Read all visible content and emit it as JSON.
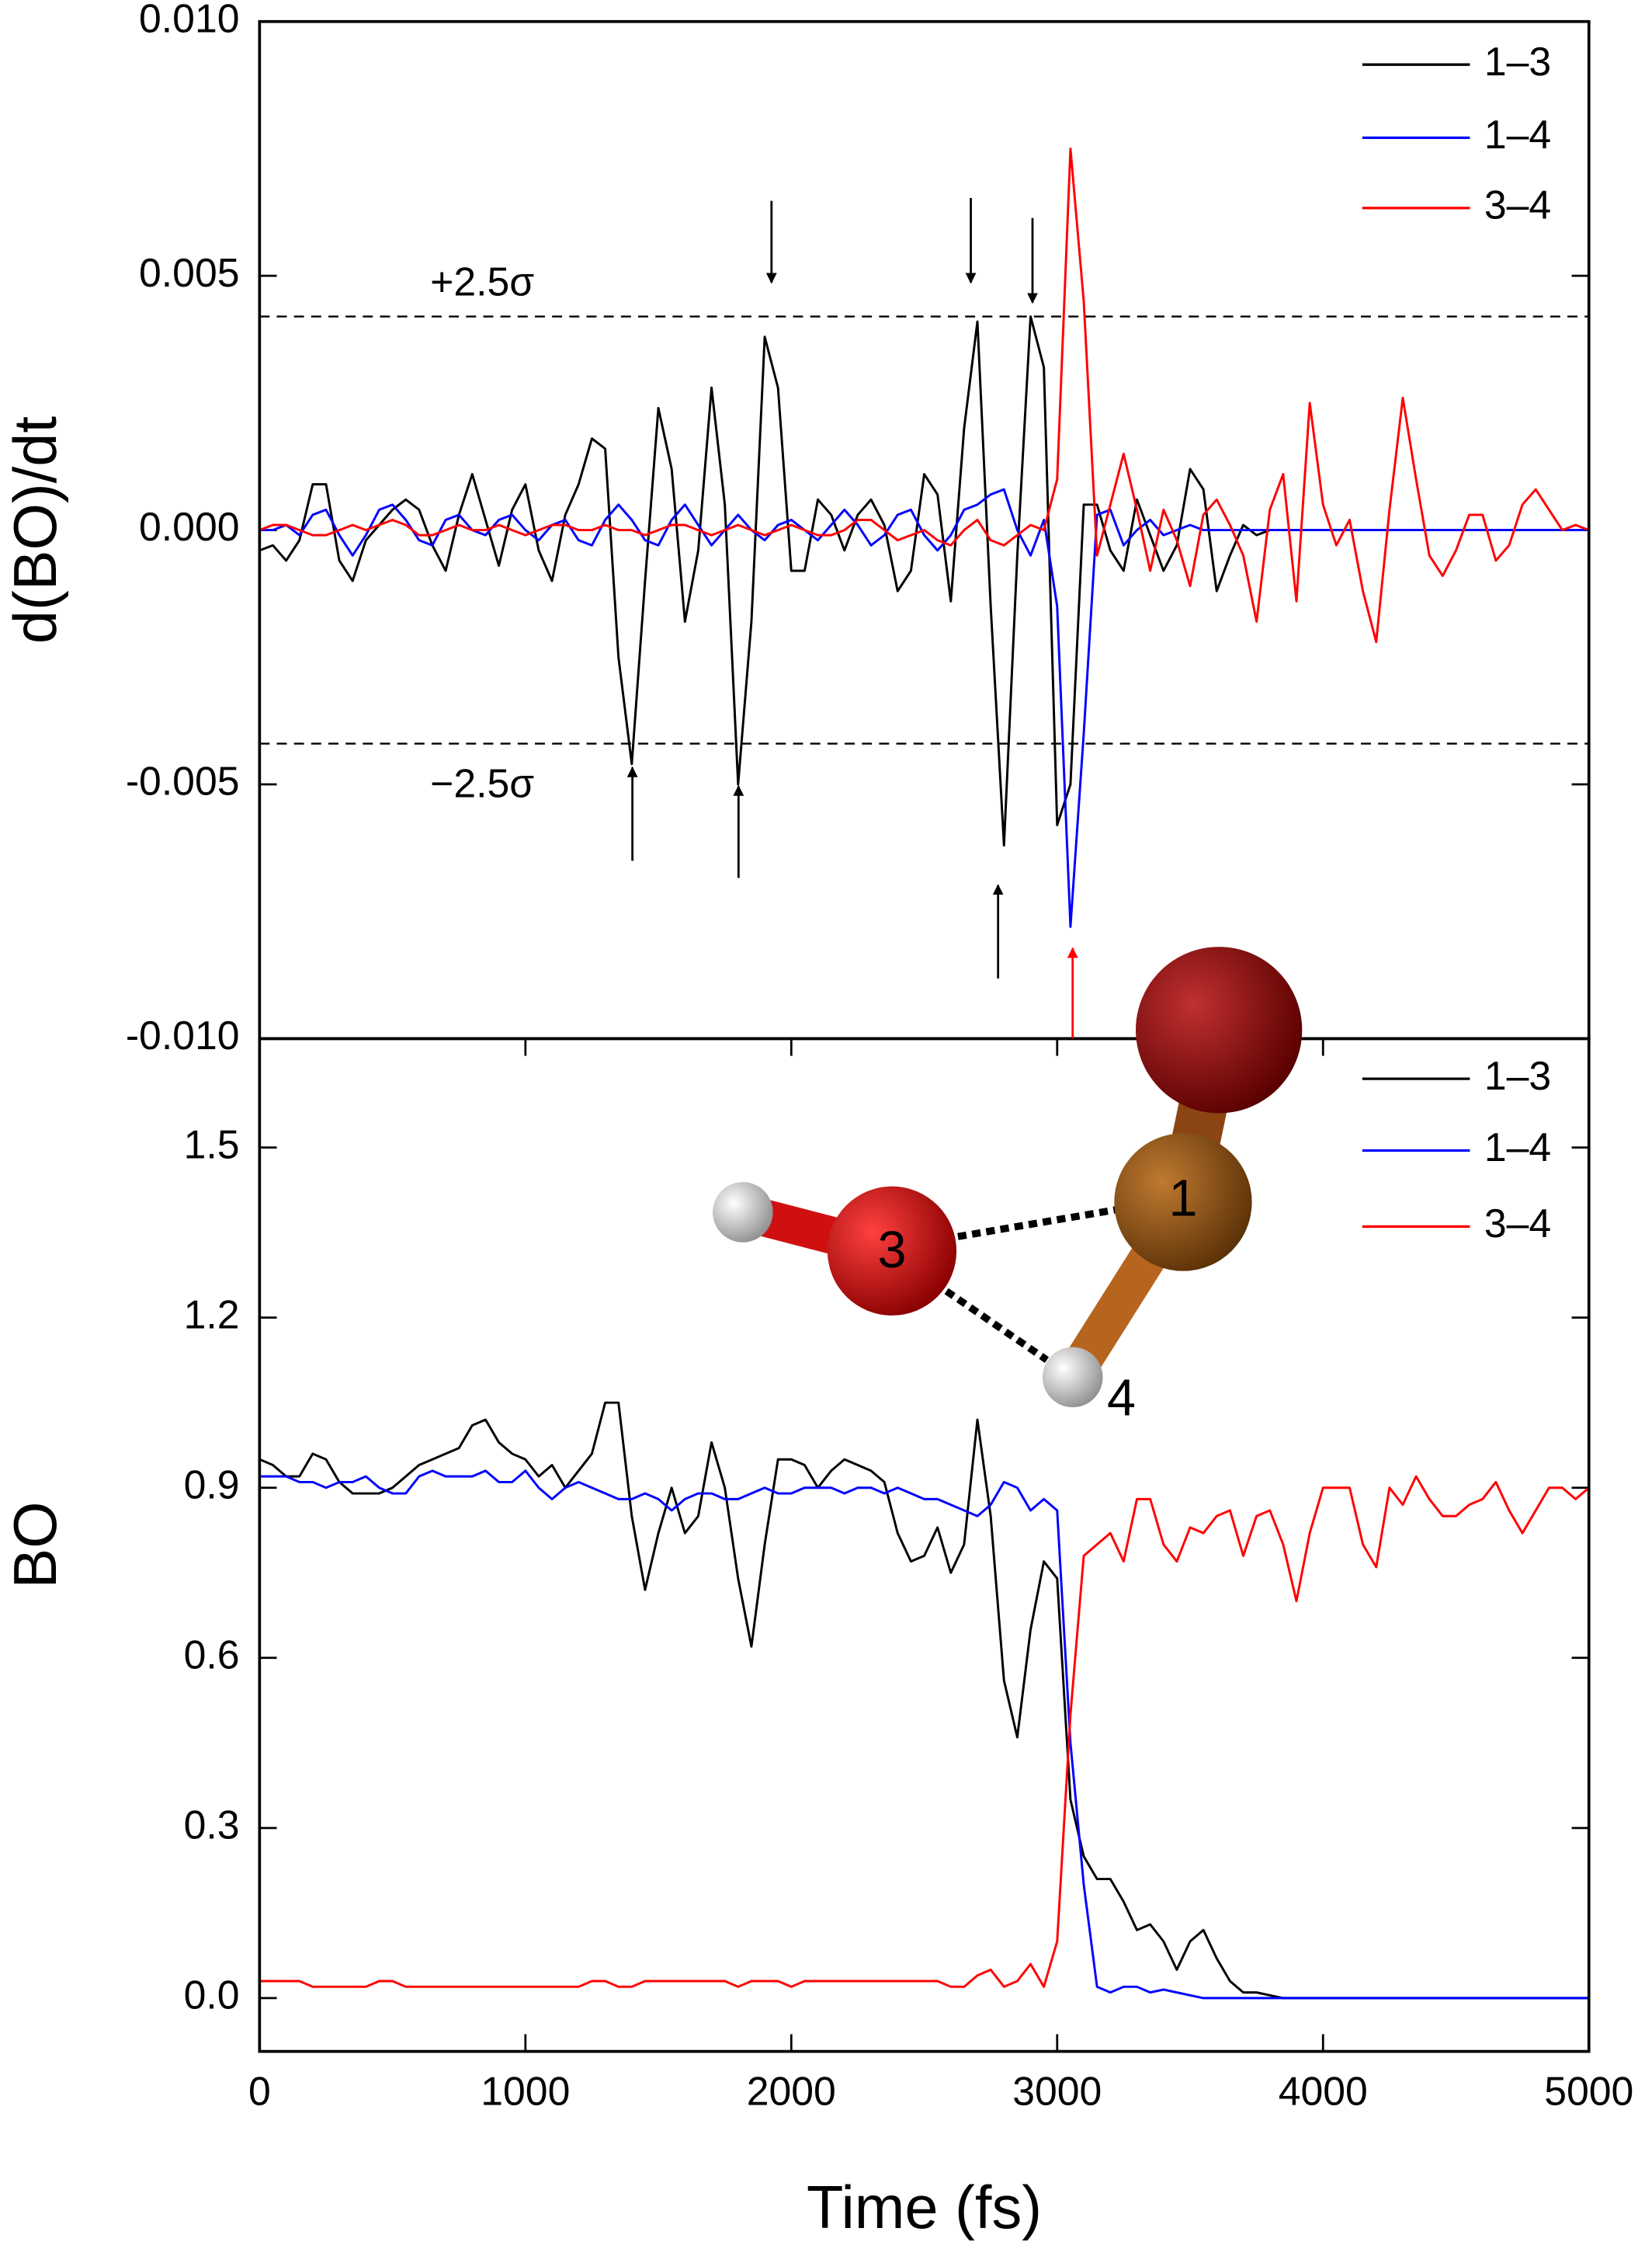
{
  "chart_data": [
    {
      "type": "line",
      "ylabel": "d(BO)/dt",
      "xlim": [
        0,
        5000
      ],
      "ylim": [
        -0.01,
        0.01
      ],
      "yticks": [
        {
          "value": -0.01,
          "label": "-0.010"
        },
        {
          "value": -0.005,
          "label": "-0.005"
        },
        {
          "value": 0,
          "label": "0.000"
        },
        {
          "value": 0.005,
          "label": "0.005"
        },
        {
          "value": 0.01,
          "label": "0.010"
        }
      ],
      "legend": "upper right",
      "hlines": [
        {
          "value": 0.0042,
          "label": "+2.5σ"
        },
        {
          "value": -0.0042,
          "label": "−2.5σ"
        }
      ],
      "x": [
        0,
        50,
        100,
        150,
        200,
        250,
        300,
        350,
        400,
        450,
        500,
        550,
        600,
        650,
        700,
        750,
        800,
        850,
        900,
        950,
        1000,
        1050,
        1100,
        1150,
        1200,
        1250,
        1300,
        1350,
        1400,
        1450,
        1500,
        1550,
        1600,
        1650,
        1700,
        1750,
        1800,
        1850,
        1900,
        1950,
        2000,
        2050,
        2100,
        2150,
        2200,
        2250,
        2300,
        2350,
        2400,
        2450,
        2500,
        2550,
        2600,
        2650,
        2700,
        2750,
        2800,
        2850,
        2900,
        2950,
        3000,
        3050,
        3100,
        3150,
        3200,
        3250,
        3300,
        3350,
        3400,
        3450,
        3500,
        3550,
        3600,
        3650,
        3700,
        3750,
        3800,
        3850,
        3900,
        3950,
        4000,
        4050,
        4100,
        4150,
        4200,
        4250,
        4300,
        4350,
        4400,
        4450,
        4500,
        4550,
        4600,
        4650,
        4700,
        4750,
        4800,
        4850,
        4900,
        4950,
        5000
      ],
      "series": [
        {
          "name": "1–3",
          "color": "#000000",
          "values": [
            -0.0004,
            -0.0003,
            -0.0006,
            -0.0002,
            0.0009,
            0.0009,
            -0.0006,
            -0.001,
            -0.0002,
            0.0001,
            0.0004,
            0.0006,
            0.0004,
            -0.0003,
            -0.0008,
            0.0003,
            0.0011,
            0.0002,
            -0.0007,
            0.0004,
            0.0009,
            -0.0004,
            -0.001,
            0.0003,
            0.0009,
            0.0018,
            0.0016,
            -0.0025,
            -0.0046,
            -0.001,
            0.0024,
            0.0012,
            -0.0018,
            -0.0004,
            0.0028,
            0.0005,
            -0.005,
            -0.0018,
            0.0038,
            0.0028,
            -0.0008,
            -0.0008,
            0.0006,
            0.0003,
            -0.0004,
            0.0003,
            0.0006,
            0.0001,
            -0.0012,
            -0.0008,
            0.0011,
            0.0007,
            -0.0014,
            0.002,
            0.0041,
            -0.0015,
            -0.0062,
            -0.0005,
            0.0042,
            0.0032,
            -0.0058,
            -0.005,
            0.0005,
            0.0005,
            -0.0004,
            -0.0008,
            0.0006,
            -0.0001,
            -0.0008,
            -0.0003,
            0.0012,
            0.0008,
            -0.0012,
            -0.0005,
            0.0001,
            -0.0001,
            0,
            0,
            0,
            0,
            0,
            0,
            0,
            0,
            0,
            0,
            0,
            0,
            0,
            0,
            0,
            0,
            0,
            0,
            0,
            0,
            0,
            0,
            0,
            0,
            0
          ]
        },
        {
          "name": "1–4",
          "color": "#0000ff",
          "values": [
            0,
            0,
            0.0001,
            -0.0001,
            0.0003,
            0.0004,
            -0.0001,
            -0.0005,
            -0.0001,
            0.0004,
            0.0005,
            0.0002,
            -0.0002,
            -0.0003,
            0.0002,
            0.0003,
            0,
            -0.0001,
            0.0002,
            0.0003,
            0,
            -0.0002,
            0.0001,
            0.0002,
            -0.0002,
            -0.0003,
            0.0002,
            0.0005,
            0.0002,
            -0.0002,
            -0.0003,
            0.0002,
            0.0005,
            0.0001,
            -0.0003,
            0,
            0.0003,
            0,
            -0.0002,
            0.0001,
            0.0002,
            0,
            -0.0002,
            0.0001,
            0.0004,
            0.0001,
            -0.0003,
            -0.0001,
            0.0003,
            0.0004,
            -0.0001,
            -0.0004,
            -0.0001,
            0.0004,
            0.0005,
            0.0007,
            0.0008,
            0,
            -0.0005,
            0.0002,
            -0.0015,
            -0.0078,
            -0.004,
            0.0003,
            0.0004,
            -0.0003,
            0,
            0.0002,
            -0.0001,
            0,
            0.0001,
            0,
            0,
            0,
            0,
            0,
            0,
            0,
            0,
            0,
            0,
            0,
            0,
            0,
            0,
            0,
            0,
            0,
            0,
            0,
            0,
            0,
            0,
            0,
            0,
            0,
            0,
            0,
            0,
            0,
            0
          ]
        },
        {
          "name": "3–4",
          "color": "#ff0000",
          "values": [
            0,
            0.0001,
            0.0001,
            0,
            -0.0001,
            -0.0001,
            0,
            0.0001,
            0,
            0.0001,
            0.0002,
            0.0001,
            -0.0001,
            -0.0001,
            0,
            0.0001,
            0,
            0,
            0.0001,
            0,
            -0.0001,
            0,
            0.0001,
            0.0001,
            0,
            0,
            0.0001,
            0,
            0,
            -0.0001,
            0,
            0.0001,
            0.0001,
            0,
            -0.0001,
            0,
            0.0001,
            0,
            -0.0001,
            0,
            0.0001,
            0,
            -0.0001,
            -0.0001,
            0,
            0.0002,
            0.0002,
            0,
            -0.0002,
            -0.0001,
            0,
            -0.0002,
            -0.0003,
            0,
            0.0002,
            -0.0002,
            -0.0003,
            -0.0001,
            0.0001,
            0,
            0.001,
            0.0075,
            0.0045,
            -0.0005,
            0.0005,
            0.0015,
            0.0004,
            -0.0008,
            0.0004,
            -0.0002,
            -0.0011,
            0.0003,
            0.0006,
            0.0001,
            -0.0005,
            -0.0018,
            0.0004,
            0.0011,
            -0.0014,
            0.0025,
            0.0005,
            -0.0003,
            0.0002,
            -0.0012,
            -0.0022,
            0.0004,
            0.0026,
            0.001,
            -0.0005,
            -0.0009,
            -0.0004,
            0.0003,
            0.0003,
            -0.0006,
            -0.0003,
            0.0005,
            0.0008,
            0.0004,
            0,
            0.0001,
            0
          ]
        }
      ]
    },
    {
      "type": "line",
      "ylabel": "BO",
      "xlabel": "Time (fs)",
      "xlim": [
        0,
        5000
      ],
      "xticks": [
        0,
        1000,
        2000,
        3000,
        4000,
        5000
      ],
      "ylim": [
        -0.094,
        1.692
      ],
      "yticks": [
        {
          "value": 0,
          "label": "0.0"
        },
        0.3,
        0.6,
        0.9,
        1.2,
        1.5
      ],
      "legend": "upper right",
      "atom_labels": [
        "1",
        "3",
        "4"
      ],
      "x": [
        0,
        50,
        100,
        150,
        200,
        250,
        300,
        350,
        400,
        450,
        500,
        550,
        600,
        650,
        700,
        750,
        800,
        850,
        900,
        950,
        1000,
        1050,
        1100,
        1150,
        1200,
        1250,
        1300,
        1350,
        1400,
        1450,
        1500,
        1550,
        1600,
        1650,
        1700,
        1750,
        1800,
        1850,
        1900,
        1950,
        2000,
        2050,
        2100,
        2150,
        2200,
        2250,
        2300,
        2350,
        2400,
        2450,
        2500,
        2550,
        2600,
        2650,
        2700,
        2750,
        2800,
        2850,
        2900,
        2950,
        3000,
        3050,
        3100,
        3150,
        3200,
        3250,
        3300,
        3350,
        3400,
        3450,
        3500,
        3550,
        3600,
        3650,
        3700,
        3750,
        3800,
        3850,
        3900,
        3950,
        4000,
        4050,
        4100,
        4150,
        4200,
        4250,
        4300,
        4350,
        4400,
        4450,
        4500,
        4550,
        4600,
        4650,
        4700,
        4750,
        4800,
        4850,
        4900,
        4950,
        5000
      ],
      "series": [
        {
          "name": "1–3",
          "color": "#000000",
          "values": [
            0.95,
            0.94,
            0.92,
            0.92,
            0.96,
            0.95,
            0.91,
            0.89,
            0.89,
            0.89,
            0.9,
            0.92,
            0.94,
            0.95,
            0.96,
            0.97,
            1.01,
            1.02,
            0.98,
            0.96,
            0.95,
            0.92,
            0.94,
            0.9,
            0.93,
            0.96,
            1.05,
            1.05,
            0.85,
            0.72,
            0.82,
            0.9,
            0.82,
            0.85,
            0.98,
            0.9,
            0.74,
            0.62,
            0.8,
            0.95,
            0.95,
            0.94,
            0.9,
            0.93,
            0.95,
            0.94,
            0.93,
            0.91,
            0.82,
            0.77,
            0.78,
            0.83,
            0.75,
            0.8,
            1.02,
            0.85,
            0.56,
            0.46,
            0.65,
            0.77,
            0.74,
            0.35,
            0.25,
            0.21,
            0.21,
            0.17,
            0.12,
            0.13,
            0.1,
            0.05,
            0.1,
            0.12,
            0.07,
            0.03,
            0.01,
            0.01,
            0.005,
            0,
            0,
            0,
            0,
            0,
            0,
            0,
            0,
            0,
            0,
            0,
            0,
            0,
            0,
            0,
            0,
            0,
            0,
            0,
            0,
            0,
            0,
            0,
            0
          ]
        },
        {
          "name": "1–4",
          "color": "#0000ff",
          "values": [
            0.92,
            0.92,
            0.92,
            0.91,
            0.91,
            0.9,
            0.91,
            0.91,
            0.92,
            0.9,
            0.89,
            0.89,
            0.92,
            0.93,
            0.92,
            0.92,
            0.92,
            0.93,
            0.91,
            0.91,
            0.93,
            0.9,
            0.88,
            0.9,
            0.91,
            0.9,
            0.89,
            0.88,
            0.88,
            0.89,
            0.88,
            0.86,
            0.88,
            0.89,
            0.89,
            0.88,
            0.88,
            0.89,
            0.9,
            0.89,
            0.89,
            0.9,
            0.9,
            0.9,
            0.89,
            0.9,
            0.9,
            0.89,
            0.9,
            0.89,
            0.88,
            0.88,
            0.87,
            0.86,
            0.85,
            0.87,
            0.91,
            0.9,
            0.86,
            0.88,
            0.86,
            0.45,
            0.2,
            0.02,
            0.01,
            0.02,
            0.02,
            0.01,
            0.015,
            0.01,
            0.005,
            0,
            0,
            0,
            0,
            0,
            0,
            0,
            0,
            0,
            0,
            0,
            0,
            0,
            0,
            0,
            0,
            0,
            0,
            0,
            0,
            0,
            0,
            0,
            0,
            0,
            0,
            0,
            0,
            0,
            0
          ]
        },
        {
          "name": "3–4",
          "color": "#ff0000",
          "values": [
            0.03,
            0.03,
            0.03,
            0.03,
            0.02,
            0.02,
            0.02,
            0.02,
            0.02,
            0.03,
            0.03,
            0.02,
            0.02,
            0.02,
            0.02,
            0.02,
            0.02,
            0.02,
            0.02,
            0.02,
            0.02,
            0.02,
            0.02,
            0.02,
            0.02,
            0.03,
            0.03,
            0.02,
            0.02,
            0.03,
            0.03,
            0.03,
            0.03,
            0.03,
            0.03,
            0.03,
            0.02,
            0.03,
            0.03,
            0.03,
            0.02,
            0.03,
            0.03,
            0.03,
            0.03,
            0.03,
            0.03,
            0.03,
            0.03,
            0.03,
            0.03,
            0.03,
            0.02,
            0.02,
            0.04,
            0.05,
            0.02,
            0.03,
            0.06,
            0.02,
            0.1,
            0.5,
            0.78,
            0.8,
            0.82,
            0.77,
            0.88,
            0.88,
            0.8,
            0.77,
            0.83,
            0.82,
            0.85,
            0.86,
            0.78,
            0.85,
            0.86,
            0.8,
            0.7,
            0.82,
            0.9,
            0.9,
            0.9,
            0.8,
            0.76,
            0.9,
            0.87,
            0.92,
            0.88,
            0.85,
            0.85,
            0.87,
            0.88,
            0.91,
            0.86,
            0.82,
            0.86,
            0.9,
            0.9,
            0.88,
            0.9
          ]
        }
      ]
    }
  ]
}
